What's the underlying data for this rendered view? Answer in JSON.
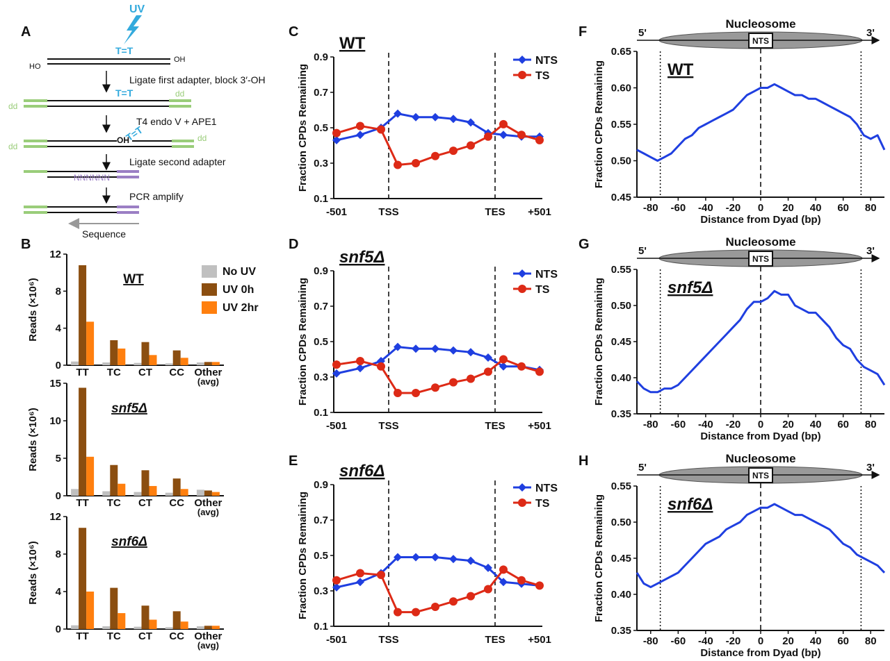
{
  "panel_letters": [
    "A",
    "B",
    "C",
    "D",
    "E",
    "F",
    "G",
    "H"
  ],
  "panelA": {
    "uv": "UV",
    "tt": "T=T",
    "ho": "HO",
    "oh": "OH",
    "oh2": "OH",
    "dd": "dd",
    "nnn": "NNNNNN",
    "steps": [
      "Ligate first adapter, block 3′-OH",
      "T4 endo V + APE1",
      "Ligate second adapter",
      "PCR amplify"
    ],
    "sequence": "Sequence"
  },
  "colors": {
    "no_uv": "#c0c0c0",
    "uv0": "#8b4e10",
    "uv2": "#ff7f0e",
    "nts": "#1f3fe0",
    "ts": "#dd2a16",
    "uv_blue": "#33aadd",
    "adapter_green": "#9acd7a",
    "adapter_purple": "#9b7fc4"
  },
  "chart_data": [
    {
      "id": "B-WT",
      "type": "bar",
      "title": "WT",
      "ylabel": "Reads (×10⁶)",
      "ylim": [
        0,
        12
      ],
      "yticks": [
        "0",
        "4",
        "8",
        "12"
      ],
      "categories": [
        "TT",
        "TC",
        "CT",
        "CC",
        "Other"
      ],
      "category_sub": [
        "",
        "",
        "",
        "",
        "(avg)"
      ],
      "series": [
        {
          "name": "No UV",
          "values": [
            0.4,
            0.3,
            0.25,
            0.2,
            0.3
          ]
        },
        {
          "name": "UV 0h",
          "values": [
            10.8,
            2.7,
            2.5,
            1.6,
            0.35
          ]
        },
        {
          "name": "UV 2hr",
          "values": [
            4.7,
            1.8,
            1.1,
            0.8,
            0.35
          ]
        }
      ],
      "legend": [
        "No UV",
        "UV 0h",
        "UV 2hr"
      ],
      "legend_position": "top-right"
    },
    {
      "id": "B-snf5",
      "type": "bar",
      "title": "snf5Δ",
      "ylabel": "Reads (×10⁶)",
      "ylim": [
        0,
        15
      ],
      "yticks": [
        "0",
        "5",
        "10",
        "15"
      ],
      "categories": [
        "TT",
        "TC",
        "CT",
        "CC",
        "Other"
      ],
      "category_sub": [
        "",
        "",
        "",
        "",
        "(avg)"
      ],
      "series": [
        {
          "name": "No UV",
          "values": [
            0.9,
            0.6,
            0.5,
            0.4,
            0.8
          ]
        },
        {
          "name": "UV 0h",
          "values": [
            14.4,
            4.1,
            3.4,
            2.3,
            0.7
          ]
        },
        {
          "name": "UV 2hr",
          "values": [
            5.2,
            1.6,
            1.3,
            0.9,
            0.5
          ]
        }
      ]
    },
    {
      "id": "B-snf6",
      "type": "bar",
      "title": "snf6Δ",
      "ylabel": "Reads (×10⁶)",
      "ylim": [
        0,
        12
      ],
      "yticks": [
        "0",
        "4",
        "8",
        "12"
      ],
      "categories": [
        "TT",
        "TC",
        "CT",
        "CC",
        "Other"
      ],
      "category_sub": [
        "",
        "",
        "",
        "",
        "(avg)"
      ],
      "series": [
        {
          "name": "No UV",
          "values": [
            0.4,
            0.3,
            0.25,
            0.2,
            0.3
          ]
        },
        {
          "name": "UV 0h",
          "values": [
            10.8,
            4.4,
            2.5,
            1.9,
            0.35
          ]
        },
        {
          "name": "UV 2hr",
          "values": [
            4.0,
            1.7,
            1.0,
            0.8,
            0.35
          ]
        }
      ]
    },
    {
      "id": "C",
      "type": "line",
      "title": "WT",
      "ylabel": "Fraction CPDs Remaining",
      "ylim": [
        0.1,
        0.9
      ],
      "yticks": [
        "0.1",
        "0.3",
        "0.5",
        "0.7",
        "0.9"
      ],
      "xticks": [
        "-501",
        "TSS",
        "TES",
        "+501"
      ],
      "x": [
        0,
        1,
        2,
        3,
        4,
        5,
        6,
        7,
        8,
        9,
        10,
        11
      ],
      "series": [
        {
          "name": "NTS",
          "values": [
            0.43,
            0.46,
            0.5,
            0.58,
            0.56,
            0.56,
            0.55,
            0.53,
            0.47,
            0.46,
            0.45,
            0.45
          ]
        },
        {
          "name": "TS",
          "values": [
            0.47,
            0.51,
            0.49,
            0.29,
            0.3,
            0.34,
            0.37,
            0.4,
            0.45,
            0.52,
            0.46,
            0.43
          ]
        }
      ],
      "legend_position": "top-right"
    },
    {
      "id": "D",
      "type": "line",
      "title": "snf5Δ",
      "ylabel": "Fraction CPDs Remaining",
      "ylim": [
        0.1,
        0.9
      ],
      "yticks": [
        "0.1",
        "0.3",
        "0.5",
        "0.7",
        "0.9"
      ],
      "xticks": [
        "-501",
        "TSS",
        "TES",
        "+501"
      ],
      "x": [
        0,
        1,
        2,
        3,
        4,
        5,
        6,
        7,
        8,
        9,
        10,
        11
      ],
      "series": [
        {
          "name": "NTS",
          "values": [
            0.32,
            0.35,
            0.39,
            0.47,
            0.46,
            0.46,
            0.45,
            0.44,
            0.41,
            0.36,
            0.36,
            0.34
          ]
        },
        {
          "name": "TS",
          "values": [
            0.37,
            0.39,
            0.36,
            0.21,
            0.21,
            0.24,
            0.27,
            0.29,
            0.33,
            0.4,
            0.36,
            0.33
          ]
        }
      ],
      "legend_position": "top-right"
    },
    {
      "id": "E",
      "type": "line",
      "title": "snf6Δ",
      "ylabel": "Fraction CPDs Remaining",
      "ylim": [
        0.1,
        0.9
      ],
      "yticks": [
        "0.1",
        "0.3",
        "0.5",
        "0.7",
        "0.9"
      ],
      "xticks": [
        "-501",
        "TSS",
        "TES",
        "+501"
      ],
      "x": [
        0,
        1,
        2,
        3,
        4,
        5,
        6,
        7,
        8,
        9,
        10,
        11
      ],
      "series": [
        {
          "name": "NTS",
          "values": [
            0.32,
            0.35,
            0.4,
            0.49,
            0.49,
            0.49,
            0.48,
            0.47,
            0.43,
            0.35,
            0.34,
            0.33
          ]
        },
        {
          "name": "TS",
          "values": [
            0.36,
            0.4,
            0.39,
            0.18,
            0.18,
            0.21,
            0.24,
            0.27,
            0.31,
            0.42,
            0.36,
            0.33
          ]
        }
      ],
      "legend_position": "top-right"
    },
    {
      "id": "F",
      "type": "line",
      "title": "WT",
      "ylabel": "Fraction CPDs Remaining",
      "xlabel": "Distance from Dyad (bp)",
      "ylim": [
        0.45,
        0.65
      ],
      "yticks": [
        "0.45",
        "0.50",
        "0.55",
        "0.60",
        "0.65"
      ],
      "xlim": [
        -90,
        90
      ],
      "xticks": [
        "-80",
        "-60",
        "-40",
        "-20",
        "0",
        "20",
        "40",
        "60",
        "80"
      ],
      "x": [
        -90,
        -85,
        -80,
        -75,
        -70,
        -65,
        -60,
        -55,
        -50,
        -45,
        -40,
        -35,
        -30,
        -25,
        -20,
        -15,
        -10,
        -5,
        0,
        5,
        10,
        15,
        20,
        25,
        30,
        35,
        40,
        45,
        50,
        55,
        60,
        65,
        70,
        75,
        80,
        85,
        90
      ],
      "series": [
        {
          "name": "NTS",
          "values": [
            0.515,
            0.51,
            0.505,
            0.5,
            0.505,
            0.51,
            0.52,
            0.53,
            0.535,
            0.545,
            0.55,
            0.555,
            0.56,
            0.565,
            0.57,
            0.58,
            0.59,
            0.595,
            0.6,
            0.6,
            0.605,
            0.6,
            0.595,
            0.59,
            0.59,
            0.585,
            0.585,
            0.58,
            0.575,
            0.57,
            0.565,
            0.56,
            0.55,
            0.535,
            0.53,
            0.535,
            0.515
          ]
        }
      ]
    },
    {
      "id": "G",
      "type": "line",
      "title": "snf5Δ",
      "ylabel": "Fraction CPDs Remaining",
      "xlabel": "Distance from Dyad (bp)",
      "ylim": [
        0.35,
        0.55
      ],
      "yticks": [
        "0.35",
        "0.40",
        "0.45",
        "0.50",
        "0.55"
      ],
      "xlim": [
        -90,
        90
      ],
      "xticks": [
        "-80",
        "-60",
        "-40",
        "-20",
        "0",
        "20",
        "40",
        "60",
        "80"
      ],
      "x": [
        -90,
        -85,
        -80,
        -75,
        -70,
        -65,
        -60,
        -55,
        -50,
        -45,
        -40,
        -35,
        -30,
        -25,
        -20,
        -15,
        -10,
        -5,
        0,
        5,
        10,
        15,
        20,
        25,
        30,
        35,
        40,
        45,
        50,
        55,
        60,
        65,
        70,
        75,
        80,
        85,
        90
      ],
      "series": [
        {
          "name": "NTS",
          "values": [
            0.395,
            0.385,
            0.38,
            0.38,
            0.385,
            0.385,
            0.39,
            0.4,
            0.41,
            0.42,
            0.43,
            0.44,
            0.45,
            0.46,
            0.47,
            0.48,
            0.495,
            0.505,
            0.505,
            0.51,
            0.52,
            0.515,
            0.515,
            0.5,
            0.495,
            0.49,
            0.49,
            0.48,
            0.47,
            0.455,
            0.445,
            0.44,
            0.425,
            0.415,
            0.41,
            0.405,
            0.39
          ]
        }
      ]
    },
    {
      "id": "H",
      "type": "line",
      "title": "snf6Δ",
      "ylabel": "Fraction CPDs Remaining",
      "xlabel": "Distance from Dyad (bp)",
      "ylim": [
        0.35,
        0.55
      ],
      "yticks": [
        "0.35",
        "0.40",
        "0.45",
        "0.50",
        "0.55"
      ],
      "xlim": [
        -90,
        90
      ],
      "xticks": [
        "-80",
        "-60",
        "-40",
        "-20",
        "0",
        "20",
        "40",
        "60",
        "80"
      ],
      "x": [
        -90,
        -85,
        -80,
        -75,
        -70,
        -65,
        -60,
        -55,
        -50,
        -45,
        -40,
        -35,
        -30,
        -25,
        -20,
        -15,
        -10,
        -5,
        0,
        5,
        10,
        15,
        20,
        25,
        30,
        35,
        40,
        45,
        50,
        55,
        60,
        65,
        70,
        75,
        80,
        85,
        90
      ],
      "series": [
        {
          "name": "NTS",
          "values": [
            0.43,
            0.415,
            0.41,
            0.415,
            0.42,
            0.425,
            0.43,
            0.44,
            0.45,
            0.46,
            0.47,
            0.475,
            0.48,
            0.49,
            0.495,
            0.5,
            0.51,
            0.515,
            0.52,
            0.52,
            0.525,
            0.52,
            0.515,
            0.51,
            0.51,
            0.505,
            0.5,
            0.495,
            0.49,
            0.48,
            0.47,
            0.465,
            0.455,
            0.45,
            0.445,
            0.44,
            0.43
          ]
        }
      ]
    }
  ],
  "nucleosome": {
    "label": "Nucleosome",
    "nts": "NTS",
    "five": "5'",
    "three": "3'"
  }
}
